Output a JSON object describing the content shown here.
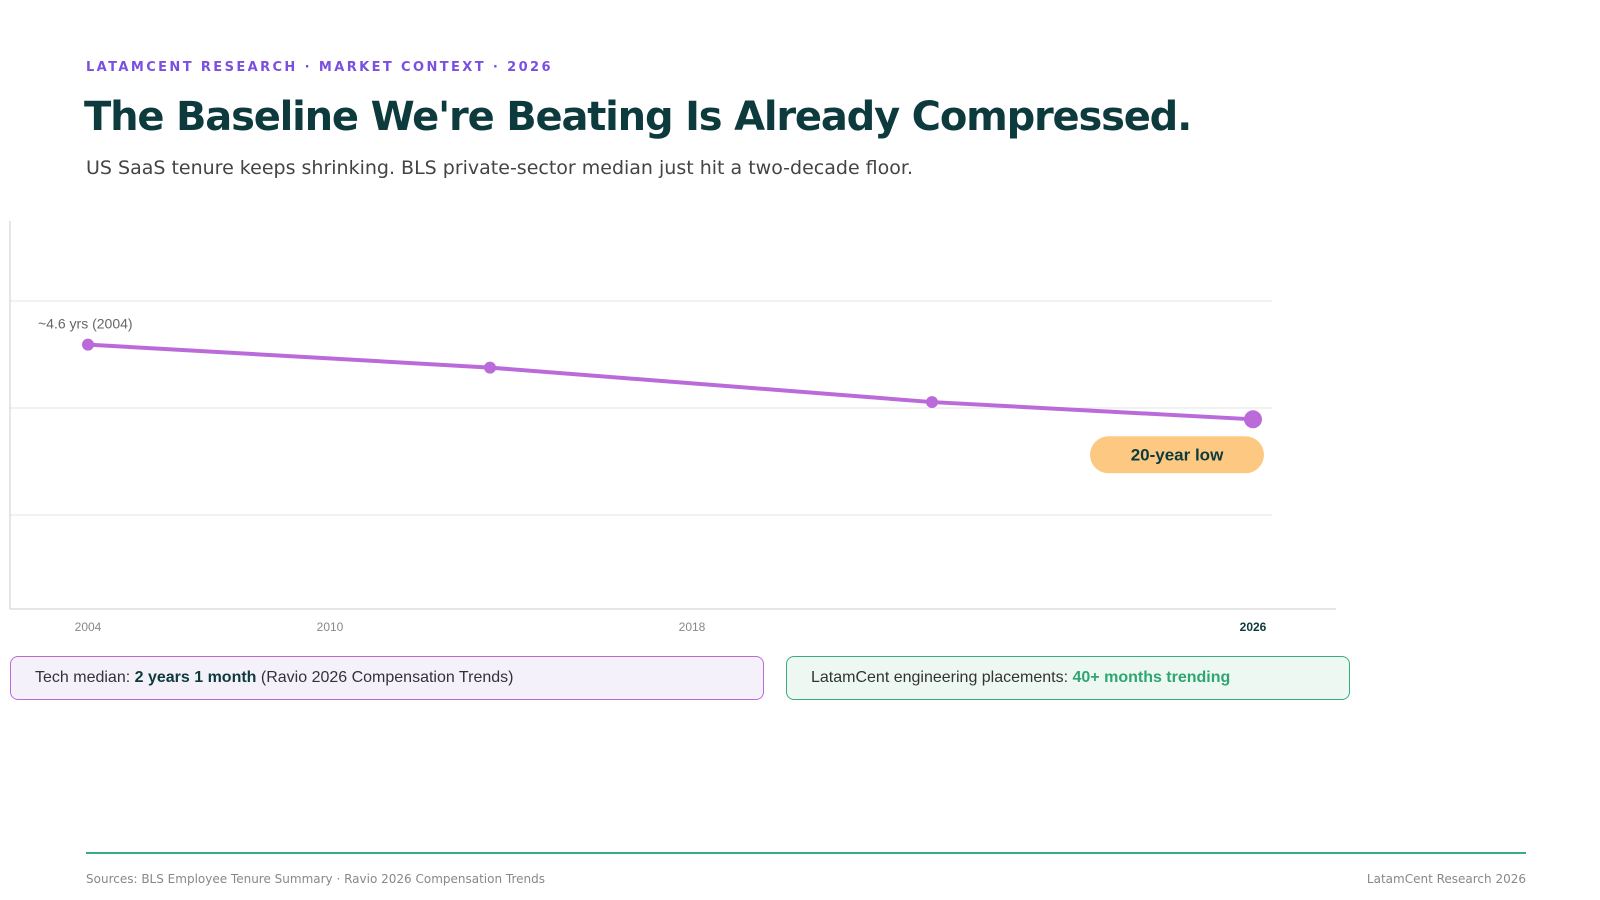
{
  "header": {
    "eyebrow": "LATAMCENT RESEARCH · MARKET CONTEXT · 2026",
    "title": "The Baseline We're Beating Is Already Compressed.",
    "subtitle": "US SaaS tenure keeps shrinking. BLS private-sector median just hit a two-decade floor."
  },
  "chart_data": {
    "type": "line",
    "categories": [
      "2004",
      "2010",
      "2018",
      "2026"
    ],
    "values": [
      4.6,
      4.2,
      3.6,
      3.3
    ],
    "color": "#bb6bd9",
    "ylim": [
      0,
      6.75
    ],
    "annotations": [
      "~4.6 yrs (2004)",
      "20-year low"
    ]
  },
  "cards": [
    {
      "prefix": "Tech median: ",
      "highlight": "2 years 1 month",
      "suffix": " (Ravio 2026 Compensation Trends)"
    },
    {
      "prefix": "LatamCent engineering placements: ",
      "highlight": "40+ months trending"
    }
  ],
  "footer": {
    "sources": "Sources: BLS Employee Tenure Summary · Ravio 2026 Compensation Trends",
    "brand": "LatamCent Research 2026"
  }
}
